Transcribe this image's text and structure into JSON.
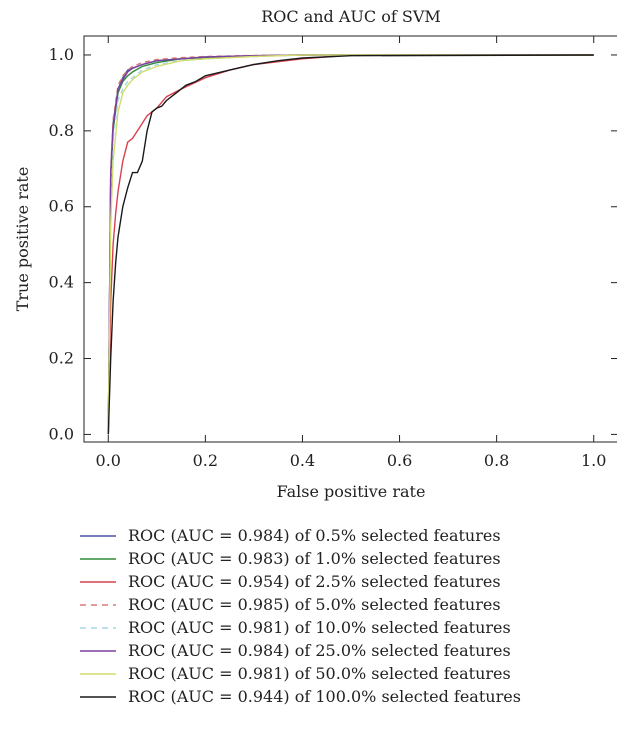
{
  "chart_data": {
    "type": "line",
    "title": "ROC and AUC of SVM",
    "xlabel": "False positive rate",
    "ylabel": "True positive rate",
    "xlim": [
      -0.05,
      1.05
    ],
    "ylim": [
      -0.02,
      1.05
    ],
    "xticks": [
      "0.0",
      "0.2",
      "0.4",
      "0.6",
      "0.8",
      "1.0"
    ],
    "yticks": [
      "0.0",
      "0.2",
      "0.4",
      "0.6",
      "0.8",
      "1.0"
    ],
    "grid": false,
    "legend_position": "below",
    "series": [
      {
        "name": "ROC (AUC = 0.984) of 0.5% selected features",
        "color": "#4a55a2",
        "dash": false,
        "x": [
          0,
          0.005,
          0.01,
          0.02,
          0.03,
          0.04,
          0.05,
          0.07,
          0.1,
          0.15,
          0.2,
          0.3,
          0.4,
          1.0
        ],
        "y": [
          0,
          0.68,
          0.82,
          0.91,
          0.94,
          0.96,
          0.965,
          0.975,
          0.985,
          0.99,
          0.995,
          0.998,
          1.0,
          1.0
        ]
      },
      {
        "name": "ROC (AUC = 0.983) of 1.0% selected features",
        "color": "#2e8b3a",
        "dash": false,
        "x": [
          0,
          0.005,
          0.01,
          0.02,
          0.03,
          0.04,
          0.05,
          0.07,
          0.1,
          0.15,
          0.2,
          0.3,
          0.4,
          1.0
        ],
        "y": [
          0,
          0.66,
          0.8,
          0.9,
          0.93,
          0.945,
          0.955,
          0.97,
          0.98,
          0.99,
          0.993,
          0.997,
          1.0,
          1.0
        ]
      },
      {
        "name": "ROC (AUC = 0.954) of 2.5% selected features",
        "color": "#d9414f",
        "dash": false,
        "x": [
          0,
          0.005,
          0.01,
          0.015,
          0.02,
          0.03,
          0.04,
          0.05,
          0.06,
          0.07,
          0.08,
          0.1,
          0.12,
          0.15,
          0.2,
          0.25,
          0.3,
          0.4,
          0.5,
          1.0
        ],
        "y": [
          0,
          0.35,
          0.5,
          0.58,
          0.64,
          0.72,
          0.77,
          0.78,
          0.8,
          0.82,
          0.84,
          0.86,
          0.89,
          0.91,
          0.94,
          0.96,
          0.975,
          0.99,
          1.0,
          1.0
        ]
      },
      {
        "name": "ROC (AUC = 0.985) of 5.0% selected features",
        "color": "#d97a74",
        "dash": true,
        "x": [
          0,
          0.005,
          0.01,
          0.02,
          0.03,
          0.04,
          0.05,
          0.07,
          0.1,
          0.15,
          0.2,
          0.3,
          0.4,
          1.0
        ],
        "y": [
          0,
          0.7,
          0.83,
          0.92,
          0.945,
          0.96,
          0.97,
          0.98,
          0.988,
          0.993,
          0.996,
          0.999,
          1.0,
          1.0
        ]
      },
      {
        "name": "ROC (AUC = 0.981) of 10.0% selected features",
        "color": "#a6d6e6",
        "dash": true,
        "x": [
          0,
          0.005,
          0.01,
          0.02,
          0.03,
          0.04,
          0.05,
          0.07,
          0.1,
          0.15,
          0.2,
          0.3,
          0.4,
          1.0
        ],
        "y": [
          0,
          0.62,
          0.78,
          0.88,
          0.91,
          0.93,
          0.94,
          0.96,
          0.975,
          0.985,
          0.99,
          0.996,
          1.0,
          1.0
        ]
      },
      {
        "name": "ROC (AUC = 0.984) of 25.0% selected features",
        "color": "#7b3fa0",
        "dash": false,
        "x": [
          0,
          0.005,
          0.01,
          0.02,
          0.03,
          0.04,
          0.05,
          0.07,
          0.1,
          0.15,
          0.2,
          0.3,
          0.4,
          1.0
        ],
        "y": [
          0,
          0.69,
          0.81,
          0.91,
          0.935,
          0.955,
          0.965,
          0.975,
          0.985,
          0.99,
          0.995,
          0.998,
          1.0,
          1.0
        ]
      },
      {
        "name": "ROC (AUC = 0.981) of 50.0% selected features",
        "color": "#d2dc6e",
        "dash": false,
        "x": [
          0,
          0.005,
          0.01,
          0.02,
          0.03,
          0.04,
          0.05,
          0.07,
          0.1,
          0.15,
          0.2,
          0.3,
          0.4,
          1.0
        ],
        "y": [
          0,
          0.55,
          0.72,
          0.85,
          0.9,
          0.92,
          0.935,
          0.955,
          0.97,
          0.985,
          0.99,
          0.996,
          1.0,
          1.0
        ]
      },
      {
        "name": "ROC (AUC = 0.944) of 100.0% selected features",
        "color": "#1a1a1a",
        "dash": false,
        "x": [
          0,
          0.005,
          0.01,
          0.015,
          0.02,
          0.03,
          0.04,
          0.05,
          0.06,
          0.07,
          0.08,
          0.09,
          0.1,
          0.11,
          0.12,
          0.14,
          0.16,
          0.18,
          0.2,
          0.25,
          0.3,
          0.35,
          0.4,
          0.5,
          1.0
        ],
        "y": [
          0,
          0.2,
          0.35,
          0.45,
          0.52,
          0.6,
          0.65,
          0.69,
          0.69,
          0.72,
          0.8,
          0.85,
          0.86,
          0.865,
          0.88,
          0.9,
          0.92,
          0.93,
          0.945,
          0.96,
          0.975,
          0.985,
          0.992,
          0.998,
          1.0
        ]
      }
    ]
  }
}
